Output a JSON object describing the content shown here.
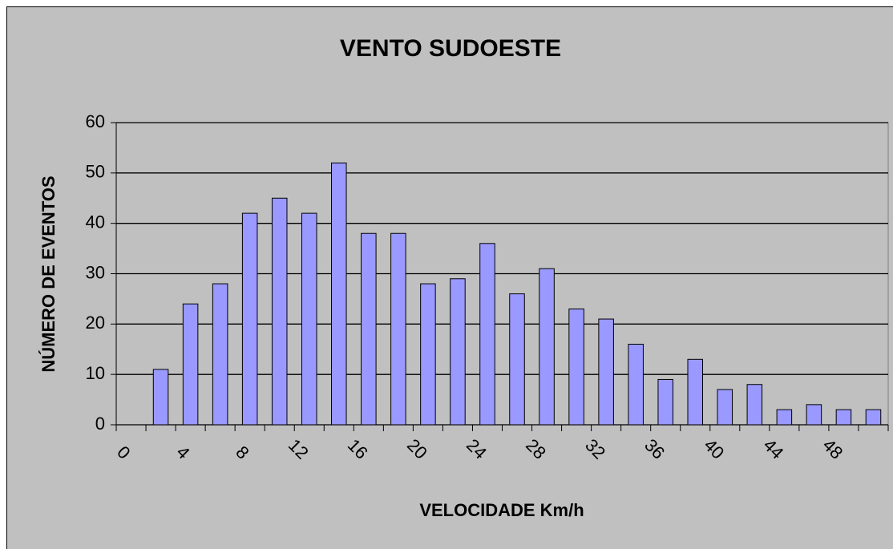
{
  "chart_data": {
    "type": "bar",
    "title": "VENTO SUDOESTE",
    "x_label": "VELOCIDADE Km/h",
    "y_label": "NÚMERO DE EVENTOS",
    "categories": [
      "0",
      null,
      "4",
      null,
      "8",
      null,
      "12",
      null,
      "16",
      null,
      "20",
      null,
      "24",
      null,
      "28",
      null,
      "32",
      null,
      "36",
      null,
      "40",
      null,
      "44",
      null,
      "48",
      null
    ],
    "values": [
      0,
      11,
      24,
      28,
      42,
      45,
      42,
      52,
      38,
      38,
      28,
      29,
      36,
      26,
      31,
      23,
      21,
      16,
      9,
      13,
      7,
      8,
      3,
      4,
      3,
      3
    ],
    "color": "#9999ff",
    "ylim": [
      0,
      60
    ],
    "yticks": [
      0,
      10,
      20,
      30,
      40,
      50,
      60
    ],
    "grid": true
  }
}
